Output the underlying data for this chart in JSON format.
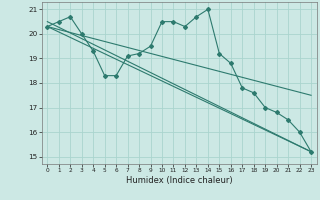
{
  "title": "",
  "xlabel": "Humidex (Indice chaleur)",
  "bg_color": "#cce8e4",
  "grid_color": "#aad4ce",
  "line_color": "#2d7a6e",
  "xlim": [
    -0.5,
    23.5
  ],
  "ylim": [
    14.7,
    21.3
  ],
  "yticks": [
    15,
    16,
    17,
    18,
    19,
    20,
    21
  ],
  "xticks": [
    0,
    1,
    2,
    3,
    4,
    5,
    6,
    7,
    8,
    9,
    10,
    11,
    12,
    13,
    14,
    15,
    16,
    17,
    18,
    19,
    20,
    21,
    22,
    23
  ],
  "series1_x": [
    0,
    1,
    2,
    3,
    4,
    5,
    6,
    7,
    8,
    9,
    10,
    11,
    12,
    13,
    14,
    15,
    16,
    17,
    18,
    19,
    20,
    21,
    22,
    23
  ],
  "series1_y": [
    20.3,
    20.5,
    20.7,
    20.0,
    19.3,
    18.3,
    18.3,
    19.1,
    19.2,
    19.5,
    20.5,
    20.5,
    20.3,
    20.7,
    21.0,
    19.2,
    18.8,
    17.8,
    17.6,
    17.0,
    16.8,
    16.5,
    16.0,
    15.2
  ],
  "trend1_x": [
    0,
    23
  ],
  "trend1_y": [
    20.3,
    15.2
  ],
  "trend2_x": [
    0,
    23
  ],
  "trend2_y": [
    20.5,
    15.2
  ],
  "trend3_x": [
    0,
    23
  ],
  "trend3_y": [
    20.3,
    17.5
  ]
}
